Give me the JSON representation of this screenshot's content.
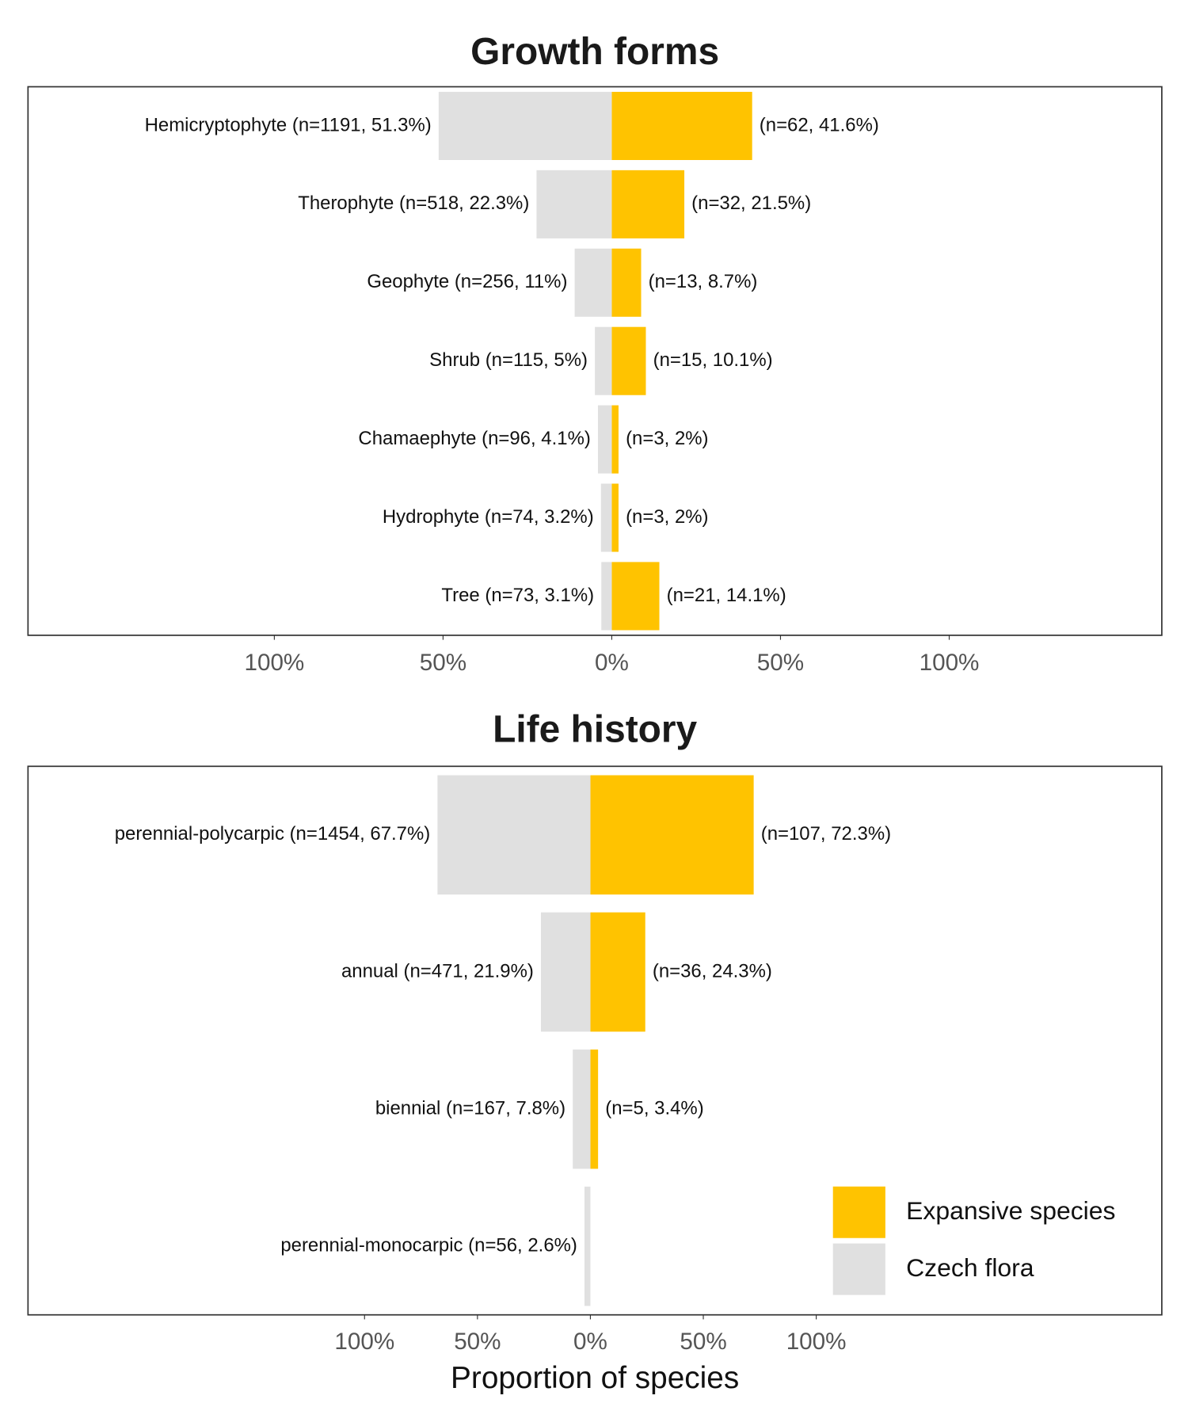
{
  "chart_data": [
    {
      "type": "bar",
      "title": "Growth forms",
      "series": [
        {
          "name": "Expansive species",
          "color": "#ffc300",
          "values": [
            41.6,
            21.5,
            8.7,
            10.1,
            2,
            2,
            14.1
          ],
          "value_labels": [
            "(n=62, 41.6%)",
            "(n=32, 21.5%)",
            "(n=13, 8.7%)",
            "(n=15, 10.1%)",
            "(n=3, 2%)",
            "(n=3, 2%)",
            "(n=21, 14.1%)"
          ]
        },
        {
          "name": "Czech flora",
          "color": "#e0e0e0",
          "values": [
            51.3,
            22.3,
            11,
            5,
            4.1,
            3.2,
            3.1
          ],
          "value_labels": [
            "Hemicryptophyte (n=1191, 51.3%)",
            "Therophyte (n=518, 22.3%)",
            "Geophyte (n=256, 11%)",
            "Shrub (n=115, 5%)",
            "Chamaephyte (n=96, 4.1%)",
            "Hydrophyte (n=74, 3.2%)",
            "Tree (n=73, 3.1%)"
          ]
        }
      ],
      "xlim": [
        -173,
        163
      ],
      "xticks": [
        {
          "value": -100,
          "label": "100%"
        },
        {
          "value": -50,
          "label": "50%"
        },
        {
          "value": 0,
          "label": "0%"
        },
        {
          "value": 50,
          "label": "50%"
        },
        {
          "value": 100,
          "label": "100%"
        }
      ],
      "legend": false
    },
    {
      "type": "bar",
      "title": "Life history",
      "x_label": "Proportion of species",
      "series": [
        {
          "name": "Expansive species",
          "color": "#ffc300",
          "values": [
            72.3,
            24.3,
            3.4,
            null
          ],
          "value_labels": [
            "(n=107, 72.3%)",
            "(n=36, 24.3%)",
            "(n=5, 3.4%)",
            null
          ]
        },
        {
          "name": "Czech flora",
          "color": "#e0e0e0",
          "values": [
            67.7,
            21.9,
            7.8,
            2.6
          ],
          "value_labels": [
            "perennial-polycarpic (n=1454, 67.7%)",
            "annual (n=471, 21.9%)",
            "biennial (n=167, 7.8%)",
            "perennial-monocarpic (n=56, 2.6%)"
          ]
        }
      ],
      "xlim": [
        -249,
        253
      ],
      "xticks": [
        {
          "value": -100,
          "label": "100%"
        },
        {
          "value": -50,
          "label": "50%"
        },
        {
          "value": 0,
          "label": "0%"
        },
        {
          "value": 50,
          "label": "50%"
        },
        {
          "value": 100,
          "label": "100%"
        }
      ],
      "legend": "bottom-right"
    }
  ]
}
